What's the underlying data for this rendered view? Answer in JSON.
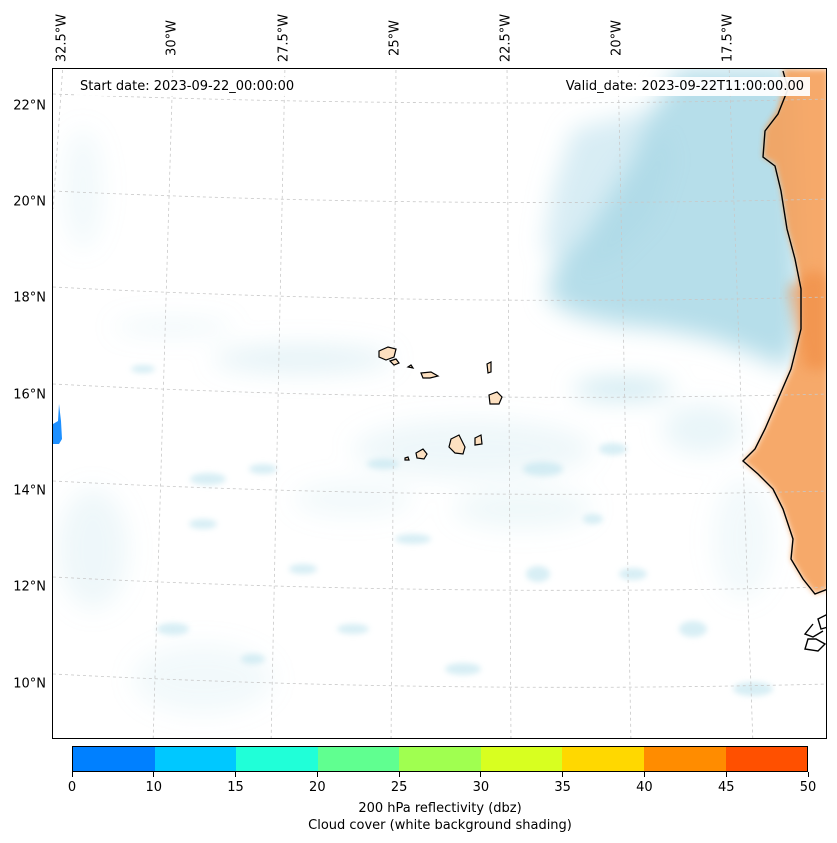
{
  "map": {
    "start_date": "Start date: 2023-09-22_00:00:00",
    "valid_date": "Valid_date: 2023-09-22T11:00:00.00",
    "lon_labels": [
      "32.5°W",
      "30°W",
      "27.5°W",
      "25°W",
      "22.5°W",
      "20°W",
      "17.5°W"
    ],
    "lat_labels": [
      "22°N",
      "20°N",
      "18°N",
      "16°N",
      "14°N",
      "12°N",
      "10°N"
    ],
    "gridlines": true,
    "land_color": "#f5a05a",
    "cloud_color": "#a9d8e6",
    "coastline_color": "#000000"
  },
  "colorbar": {
    "ticks": [
      "0",
      "10",
      "15",
      "20",
      "25",
      "30",
      "35",
      "40",
      "45",
      "50"
    ],
    "colors": [
      "#0080ff",
      "#00c8ff",
      "#20ffd8",
      "#60ff90",
      "#a0ff50",
      "#d8ff20",
      "#ffd800",
      "#ff8c00",
      "#ff5000"
    ],
    "label_line1": "200 hPa reflectivity (dbz)",
    "label_line2": "Cloud cover (white background shading)"
  }
}
